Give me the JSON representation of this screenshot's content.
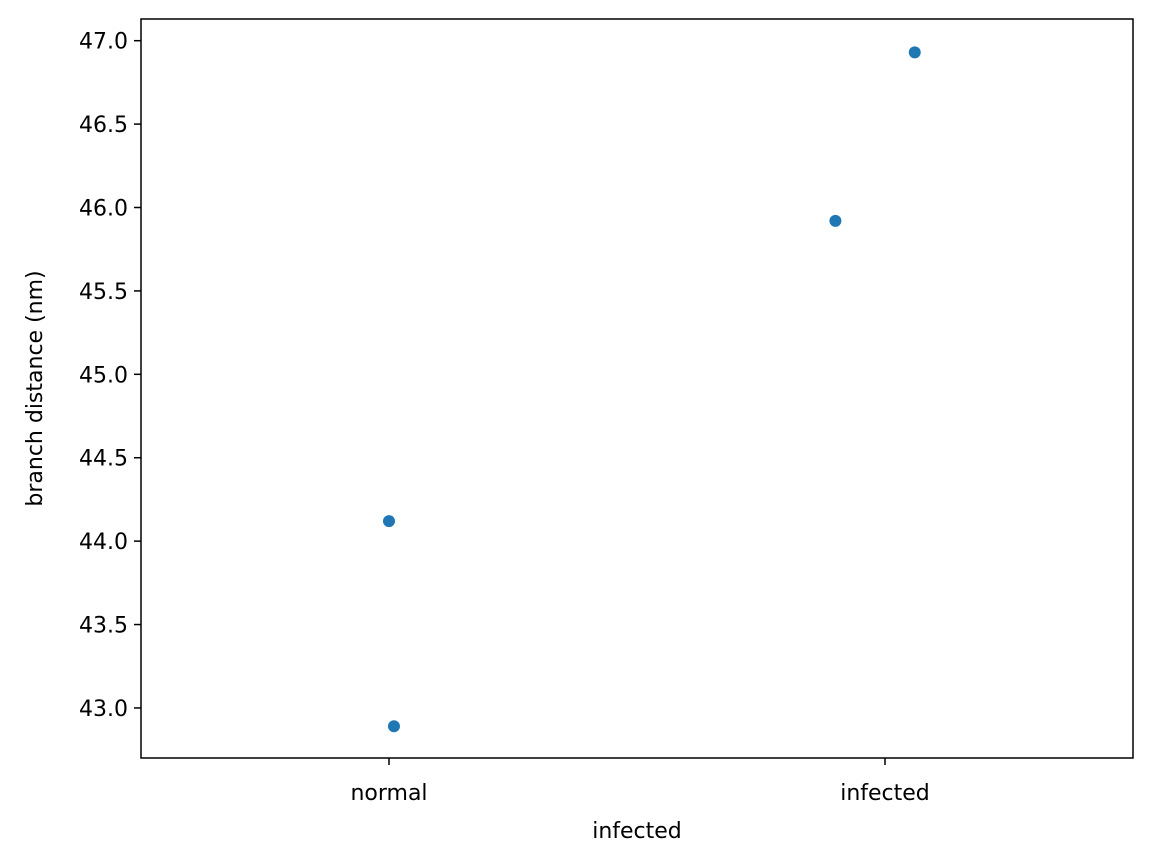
{
  "chart_data": {
    "type": "scatter",
    "title": "",
    "xlabel": "infected",
    "ylabel": "branch distance (nm)",
    "categories": [
      "normal",
      "infected"
    ],
    "points": [
      {
        "category": "normal",
        "x": 0.0,
        "y": 44.12
      },
      {
        "category": "normal",
        "x": 0.01,
        "y": 42.89
      },
      {
        "category": "infected",
        "x": 0.9,
        "y": 45.92
      },
      {
        "category": "infected",
        "x": 1.06,
        "y": 46.93
      }
    ],
    "xlim": [
      -0.5,
      1.5
    ],
    "ylim": [
      42.7,
      47.13
    ],
    "yticks": [
      "43.0",
      "43.5",
      "44.0",
      "44.5",
      "45.0",
      "45.5",
      "46.0",
      "46.5",
      "47.0"
    ],
    "grid": false,
    "marker_color": "#1f77b4"
  }
}
